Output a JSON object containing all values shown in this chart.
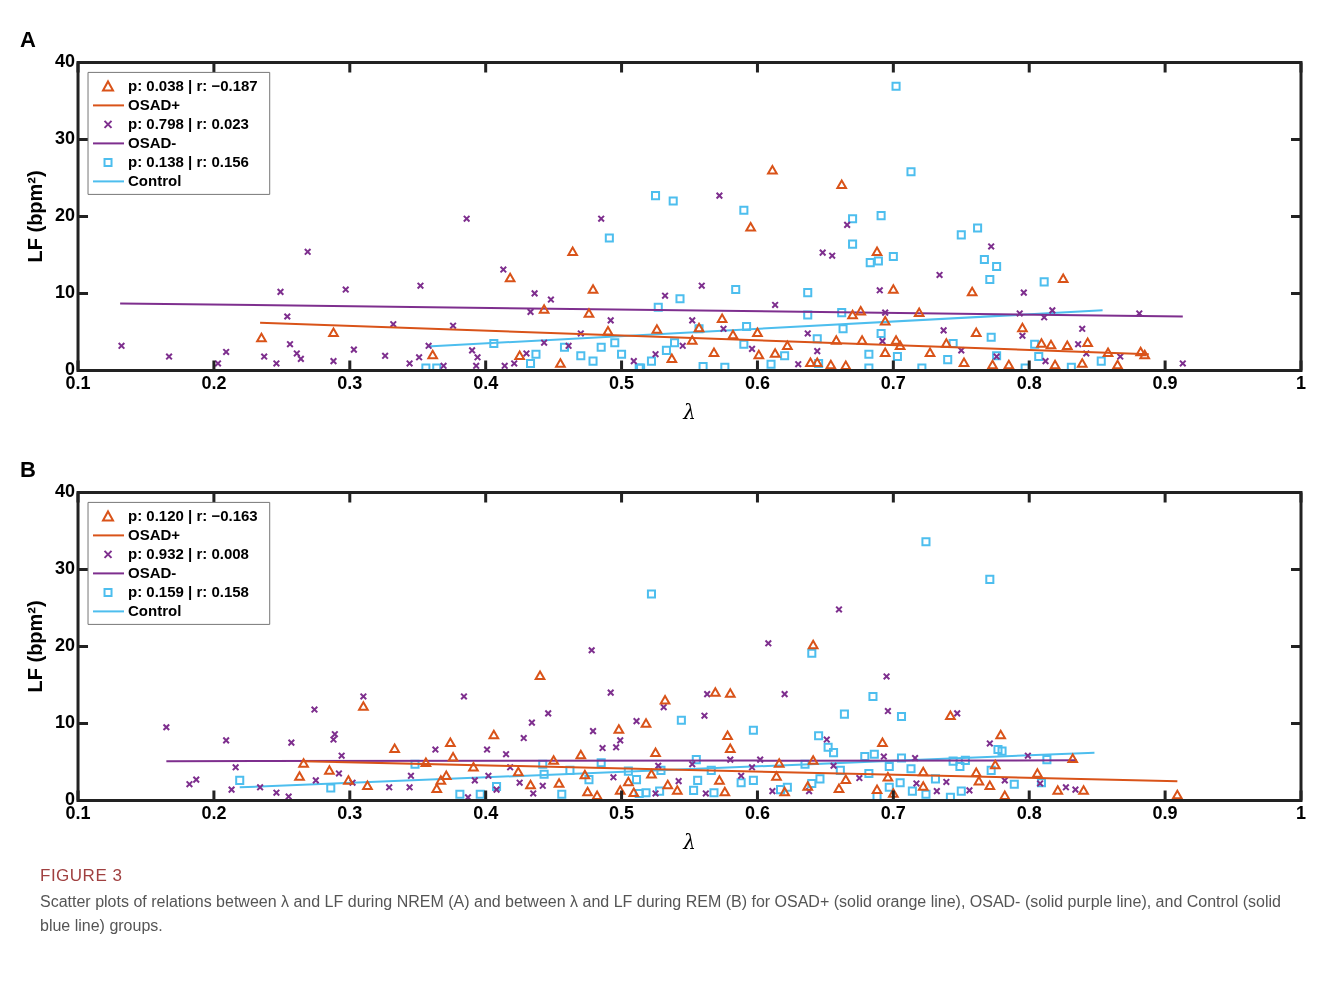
{
  "chart_data": [
    {
      "type": "scatter",
      "title": "A",
      "xlabel": "λ",
      "ylabel": "LF (bpm²)",
      "xlim": [
        0.1,
        1
      ],
      "xticks": [
        0.1,
        0.2,
        0.3,
        0.4,
        0.5,
        0.6,
        0.7,
        0.8,
        0.9,
        1
      ],
      "ylim": [
        0,
        40
      ],
      "yticks": [
        0,
        10,
        20,
        30,
        40
      ],
      "grid": false,
      "legend": "top left",
      "series": [
        {
          "name": "p: 0.038 | r: −0.187",
          "color": "#d95319",
          "marker": "triangle",
          "x": [
            0.235,
            0.288,
            0.361,
            0.418,
            0.464,
            0.479,
            0.443,
            0.476,
            0.49,
            0.425,
            0.455,
            0.611,
            0.662,
            0.595,
            0.688,
            0.7,
            0.758,
            0.825,
            0.574,
            0.67,
            0.676,
            0.719,
            0.694,
            0.795,
            0.761,
            0.6,
            0.557,
            0.582,
            0.526,
            0.658,
            0.677,
            0.702,
            0.809,
            0.816,
            0.843,
            0.858,
            0.882,
            0.885,
            0.865,
            0.839,
            0.828,
            0.773,
            0.785,
            0.752,
            0.739,
            0.727,
            0.705,
            0.694,
            0.654,
            0.644,
            0.622,
            0.613,
            0.601,
            0.568,
            0.552,
            0.537,
            0.639,
            0.665,
            0.819
          ],
          "values": [
            4.1,
            4.8,
            1.9,
            11.9,
            15.3,
            10.4,
            7.8,
            7.3,
            5.0,
            1.8,
            0.8,
            25.9,
            24.0,
            18.5,
            15.3,
            10.4,
            10.1,
            11.8,
            6.6,
            7.1,
            7.6,
            7.4,
            6.3,
            5.4,
            4.8,
            4.8,
            5.4,
            4.5,
            5.2,
            3.8,
            3.8,
            3.8,
            3.4,
            3.2,
            3.5,
            2.2,
            2.3,
            1.9,
            0.6,
            0.8,
            3.1,
            0.6,
            0.6,
            0.9,
            3.4,
            2.2,
            3.1,
            2.2,
            0.6,
            0.9,
            3.1,
            2.1,
            1.9,
            2.2,
            3.8,
            1.4,
            0.9,
            0.5,
            0.6
          ]
        },
        {
          "type": "line",
          "name": "OSAD+",
          "color": "#d95319",
          "x": [
            0.234,
            0.888
          ],
          "values": [
            6.2,
            2.1
          ]
        },
        {
          "name": "p: 0.798 | r: 0.023",
          "color": "#7e2f8e",
          "marker": "cross",
          "x": [
            0.132,
            0.167,
            0.203,
            0.209,
            0.237,
            0.246,
            0.249,
            0.254,
            0.256,
            0.261,
            0.264,
            0.269,
            0.288,
            0.297,
            0.303,
            0.326,
            0.332,
            0.344,
            0.351,
            0.352,
            0.358,
            0.369,
            0.376,
            0.386,
            0.39,
            0.394,
            0.393,
            0.413,
            0.414,
            0.421,
            0.43,
            0.433,
            0.436,
            0.443,
            0.448,
            0.461,
            0.47,
            0.485,
            0.492,
            0.572,
            0.666,
            0.648,
            0.655,
            0.772,
            0.559,
            0.532,
            0.69,
            0.734,
            0.796,
            0.613,
            0.552,
            0.575,
            0.637,
            0.694,
            0.793,
            0.811,
            0.817,
            0.881,
            0.839,
            0.737,
            0.836,
            0.795,
            0.913,
            0.867,
            0.509,
            0.525,
            0.545,
            0.596,
            0.63,
            0.644,
            0.692,
            0.75,
            0.776,
            0.812,
            0.842
          ],
          "values": [
            3.2,
            1.8,
            0.9,
            2.4,
            1.8,
            0.9,
            10.2,
            7.0,
            3.4,
            2.2,
            1.5,
            15.4,
            1.2,
            10.5,
            2.7,
            1.9,
            6.0,
            0.9,
            1.7,
            11.0,
            3.2,
            0.6,
            5.8,
            19.7,
            2.6,
            1.7,
            0.6,
            13.1,
            0.6,
            0.9,
            2.2,
            7.6,
            10.0,
            3.6,
            9.2,
            3.2,
            4.8,
            19.7,
            6.5,
            22.7,
            18.9,
            15.3,
            14.9,
            16.1,
            11.0,
            9.7,
            10.4,
            12.4,
            10.1,
            8.5,
            6.5,
            5.4,
            4.8,
            7.5,
            7.4,
            6.9,
            7.8,
            7.4,
            5.4,
            5.2,
            3.4,
            4.5,
            0.9,
            1.8,
            1.2,
            2.1,
            3.2,
            2.8,
            0.8,
            2.5,
            3.8,
            2.6,
            1.8,
            1.2,
            2.2
          ]
        },
        {
          "type": "line",
          "name": "OSAD-",
          "color": "#7e2f8e",
          "x": [
            0.131,
            0.913
          ],
          "values": [
            8.7,
            7.0
          ]
        },
        {
          "name": "p: 0.138 | r: 0.156",
          "color": "#4dbeee",
          "marker": "square",
          "x": [
            0.356,
            0.364,
            0.406,
            0.437,
            0.433,
            0.458,
            0.47,
            0.485,
            0.491,
            0.495,
            0.479,
            0.5,
            0.514,
            0.702,
            0.713,
            0.525,
            0.538,
            0.59,
            0.67,
            0.691,
            0.762,
            0.75,
            0.67,
            0.767,
            0.776,
            0.683,
            0.689,
            0.7,
            0.771,
            0.811,
            0.584,
            0.543,
            0.637,
            0.527,
            0.637,
            0.662,
            0.592,
            0.557,
            0.663,
            0.691,
            0.772,
            0.533,
            0.539,
            0.59,
            0.644,
            0.744,
            0.804,
            0.807,
            0.853,
            0.831,
            0.797,
            0.776,
            0.74,
            0.721,
            0.703,
            0.682,
            0.682,
            0.645,
            0.62,
            0.61,
            0.576,
            0.56,
            0.513,
            0.522
          ],
          "values": [
            0.3,
            0.3,
            3.5,
            2.1,
            0.9,
            3.0,
            1.9,
            3.0,
            17.2,
            3.6,
            1.2,
            2.1,
            0.3,
            36.9,
            25.8,
            22.7,
            22.0,
            20.8,
            19.7,
            20.1,
            18.5,
            17.6,
            16.4,
            14.4,
            13.5,
            14.0,
            14.2,
            14.8,
            11.8,
            11.5,
            10.5,
            9.3,
            10.1,
            8.2,
            7.2,
            7.5,
            5.7,
            5.4,
            5.4,
            4.8,
            4.3,
            2.6,
            3.6,
            3.4,
            4.1,
            3.5,
            3.4,
            1.8,
            1.2,
            0.4,
            0.3,
            1.9,
            1.4,
            0.3,
            1.8,
            2.1,
            0.3,
            0.9,
            1.9,
            0.8,
            0.4,
            0.5,
            0.3,
            1.2
          ]
        },
        {
          "type": "line",
          "name": "Control",
          "color": "#4dbeee",
          "x": [
            0.357,
            0.854
          ],
          "values": [
            3.1,
            7.8
          ]
        }
      ]
    },
    {
      "type": "scatter",
      "title": "B",
      "xlabel": "λ",
      "ylabel": "LF (bpm²)",
      "xlim": [
        0.1,
        1
      ],
      "xticks": [
        0.1,
        0.2,
        0.3,
        0.4,
        0.5,
        0.6,
        0.7,
        0.8,
        0.9,
        1
      ],
      "ylim": [
        0,
        40
      ],
      "yticks": [
        0,
        10,
        20,
        30,
        40
      ],
      "grid": false,
      "legend": "top left",
      "annotations": [
        "FIGURE 3",
        "Scatter plots of relations between λ and LF during NREM (A) and between λ and LF during REM (B) for OSAD+ (solid orange line), OSAD- (solid purple line), and Control (solid blue line) groups."
      ],
      "series": [
        {
          "name": "p: 0.120 | r: −0.163",
          "color": "#d95319",
          "marker": "triangle",
          "x": [
            0.31,
            0.266,
            0.263,
            0.285,
            0.299,
            0.313,
            0.333,
            0.356,
            0.364,
            0.367,
            0.371,
            0.374,
            0.376,
            0.391,
            0.406,
            0.424,
            0.433,
            0.44,
            0.45,
            0.454,
            0.47,
            0.473,
            0.475,
            0.482,
            0.498,
            0.499,
            0.505,
            0.532,
            0.518,
            0.569,
            0.58,
            0.641,
            0.578,
            0.58,
            0.525,
            0.692,
            0.742,
            0.779,
            0.832,
            0.806,
            0.775,
            0.761,
            0.722,
            0.696,
            0.665,
            0.641,
            0.616,
            0.614,
            0.572,
            0.522,
            0.534,
            0.509,
            0.541,
            0.576,
            0.62,
            0.637,
            0.66,
            0.688,
            0.7,
            0.722,
            0.763,
            0.771,
            0.782,
            0.821,
            0.84,
            0.909
          ],
          "values": [
            12.1,
            4.7,
            3.0,
            3.8,
            2.5,
            1.8,
            6.6,
            4.8,
            1.4,
            2.5,
            3.1,
            7.4,
            5.5,
            4.2,
            8.4,
            3.6,
            1.9,
            16.1,
            5.1,
            2.1,
            5.8,
            3.2,
            1.0,
            0.5,
            9.1,
            1.2,
            2.3,
            12.9,
            9.9,
            13.9,
            13.8,
            20.1,
            8.3,
            6.6,
            6.1,
            7.4,
            10.9,
            8.4,
            5.3,
            3.4,
            4.5,
            3.5,
            3.6,
            2.9,
            2.6,
            5.1,
            4.7,
            3.0,
            2.5,
            3.3,
            1.9,
            0.9,
            1.2,
            1.0,
            1.0,
            1.7,
            1.4,
            1.3,
            0.8,
            1.7,
            2.4,
            1.8,
            0.5,
            1.2,
            1.2,
            0.6
          ]
        },
        {
          "type": "line",
          "name": "OSAD+",
          "color": "#d95319",
          "x": [
            0.265,
            0.909
          ],
          "values": [
            5.1,
            2.5
          ]
        },
        {
          "name": "p: 0.932 | r: 0.008",
          "color": "#7e2f8e",
          "marker": "cross",
          "x": [
            0.165,
            0.182,
            0.187,
            0.209,
            0.213,
            0.216,
            0.234,
            0.246,
            0.255,
            0.257,
            0.274,
            0.275,
            0.288,
            0.289,
            0.292,
            0.294,
            0.302,
            0.31,
            0.329,
            0.344,
            0.345,
            0.363,
            0.384,
            0.387,
            0.392,
            0.401,
            0.402,
            0.408,
            0.415,
            0.418,
            0.425,
            0.428,
            0.434,
            0.435,
            0.442,
            0.446,
            0.478,
            0.479,
            0.486,
            0.492,
            0.496,
            0.499,
            0.511,
            0.494,
            0.66,
            0.608,
            0.695,
            0.531,
            0.561,
            0.563,
            0.62,
            0.651,
            0.696,
            0.747,
            0.771,
            0.799,
            0.782,
            0.827,
            0.834,
            0.808,
            0.756,
            0.732,
            0.739,
            0.717,
            0.716,
            0.693,
            0.675,
            0.656,
            0.638,
            0.611,
            0.602,
            0.596,
            0.588,
            0.58,
            0.562,
            0.552,
            0.542,
            0.525,
            0.527
          ],
          "values": [
            9.5,
            2.1,
            2.7,
            7.8,
            1.4,
            4.3,
            1.7,
            1.0,
            0.5,
            7.5,
            11.8,
            2.6,
            7.9,
            8.6,
            3.5,
            5.8,
            2.3,
            13.5,
            1.7,
            1.7,
            3.2,
            6.6,
            13.5,
            0.4,
            2.6,
            6.6,
            3.2,
            1.4,
            6.0,
            4.3,
            2.3,
            8.1,
            10.1,
            0.9,
            1.9,
            11.3,
            19.5,
            9.0,
            6.8,
            14.0,
            6.9,
            7.8,
            10.3,
            3.0,
            24.8,
            20.4,
            16.1,
            12.1,
            11.0,
            13.8,
            13.8,
            7.9,
            11.6,
            11.3,
            7.4,
            5.8,
            2.6,
            1.7,
            1.4,
            2.2,
            1.3,
            1.2,
            2.4,
            2.2,
            5.5,
            5.7,
            2.9,
            4.5,
            1.2,
            1.2,
            5.3,
            4.3,
            3.2,
            5.3,
            0.9,
            4.7,
            2.5,
            0.9,
            4.5
          ]
        },
        {
          "type": "line",
          "name": "OSAD-",
          "color": "#7e2f8e",
          "x": [
            0.165,
            0.835
          ],
          "values": [
            5.1,
            5.2
          ]
        },
        {
          "name": "p: 0.159 | r: 0.158",
          "color": "#4dbeee",
          "marker": "square",
          "x": [
            0.219,
            0.286,
            0.348,
            0.381,
            0.396,
            0.408,
            0.442,
            0.443,
            0.456,
            0.462,
            0.476,
            0.485,
            0.505,
            0.511,
            0.513,
            0.522,
            0.724,
            0.771,
            0.64,
            0.685,
            0.664,
            0.706,
            0.544,
            0.597,
            0.645,
            0.652,
            0.656,
            0.777,
            0.78,
            0.813,
            0.679,
            0.686,
            0.706,
            0.744,
            0.753,
            0.555,
            0.635,
            0.697,
            0.749,
            0.713,
            0.772,
            0.566,
            0.529,
            0.661,
            0.682,
            0.556,
            0.588,
            0.597,
            0.646,
            0.731,
            0.789,
            0.809,
            0.617,
            0.518,
            0.528,
            0.553,
            0.568,
            0.622,
            0.64,
            0.697,
            0.705,
            0.714,
            0.724,
            0.742,
            0.75,
            0.688
          ],
          "values": [
            2.6,
            1.6,
            4.7,
            0.8,
            0.8,
            1.8,
            4.7,
            3.4,
            0.8,
            3.9,
            2.7,
            4.9,
            3.8,
            2.7,
            0.9,
            26.8,
            33.6,
            28.7,
            19.1,
            13.5,
            11.2,
            10.9,
            10.4,
            9.1,
            8.4,
            6.9,
            6.2,
            6.6,
            6.4,
            5.3,
            5.7,
            6.0,
            5.5,
            5.1,
            5.2,
            5.3,
            4.7,
            4.4,
            4.4,
            4.1,
            3.9,
            3.9,
            3.9,
            3.9,
            3.5,
            2.6,
            2.3,
            2.6,
            2.8,
            2.8,
            2.1,
            2.3,
            1.4,
            1.0,
            1.2,
            1.3,
            1.0,
            1.7,
            2.2,
            1.7,
            2.3,
            1.2,
            0.8,
            0.4,
            1.2,
            0.5
          ]
        },
        {
          "type": "line",
          "name": "Control",
          "color": "#4dbeee",
          "x": [
            0.219,
            0.848
          ],
          "values": [
            1.7,
            6.2
          ]
        }
      ]
    }
  ]
}
